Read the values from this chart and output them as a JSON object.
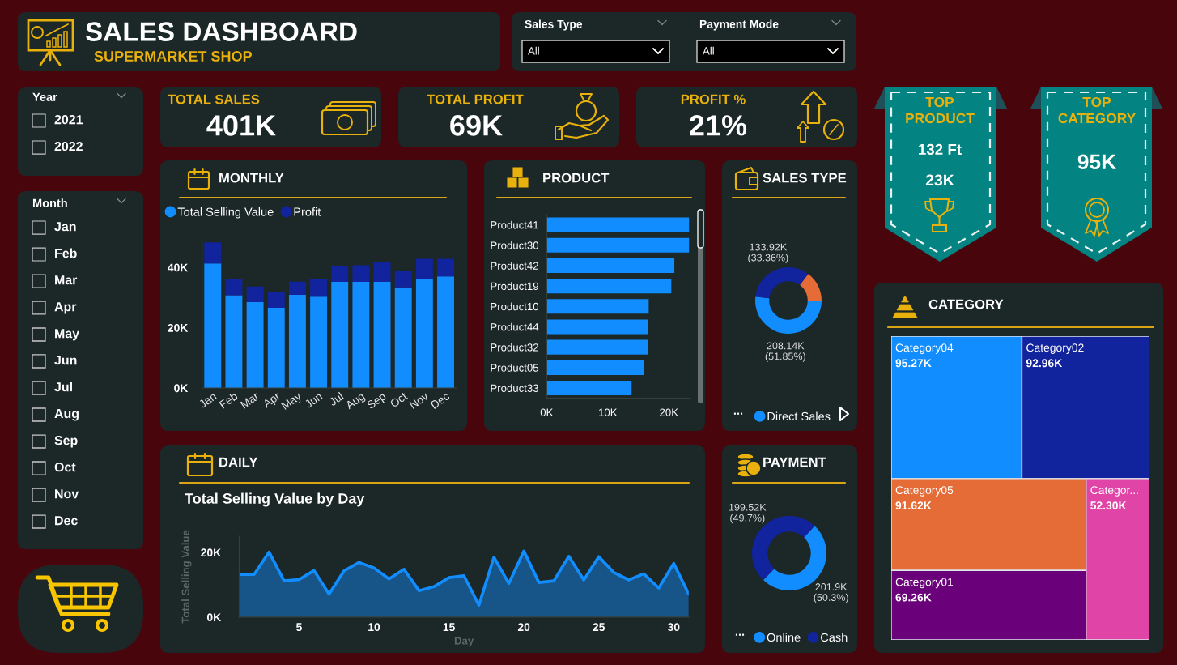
{
  "chart_data": [
    {
      "type": "other",
      "title": "SALES DASHBOARD",
      "subtitle": "SUPERMARKET SHOP"
    },
    {
      "type": "other",
      "title": "Sales Type",
      "annotations": [
        "All"
      ]
    },
    {
      "type": "other",
      "title": "Payment Mode",
      "annotations": [
        "All"
      ]
    },
    {
      "type": "other",
      "title": "Year",
      "annotations": [
        "2021",
        "2022"
      ]
    },
    {
      "type": "other",
      "title": "TOTAL SALES",
      "annotations": [
        "401K"
      ]
    },
    {
      "type": "other",
      "title": "TOTAL PROFIT",
      "annotations": [
        "69K"
      ]
    },
    {
      "type": "other",
      "title": "PROFIT %",
      "annotations": [
        "21%"
      ]
    },
    {
      "type": "other",
      "title": "TOP\nPRODUCT",
      "annotations": [
        "132 Ft",
        "23K"
      ]
    },
    {
      "type": "other",
      "title": "TOP\nCATEGORY",
      "annotations": [
        "95K"
      ]
    },
    {
      "type": "other",
      "title": "Month",
      "annotations": [
        "Jan",
        "Feb",
        "Mar",
        "Apr",
        "May",
        "Jun",
        "Jul",
        "Aug",
        "Sep",
        "Oct",
        "Nov",
        "Dec"
      ]
    },
    {
      "type": "bar",
      "title": "MONTHLY",
      "categories": [
        "Jan",
        "Feb",
        "Mar",
        "Apr",
        "May",
        "Jun",
        "Jul",
        "Aug",
        "Sep",
        "Oct",
        "Nov",
        "Dec"
      ],
      "stacked": true,
      "series": [
        {
          "name": "Total Selling Value",
          "color": "#118dff",
          "values": [
            41.3,
            30.8,
            28.5,
            26.6,
            30.9,
            30.3,
            35.2,
            35.2,
            35.2,
            33.4,
            36.0,
            37.0
          ]
        },
        {
          "name": "Profit",
          "color": "#12239e",
          "values": [
            7.0,
            5.5,
            5.2,
            5.3,
            4.4,
            5.8,
            5.4,
            5.5,
            6.5,
            5.6,
            6.9,
            5.9
          ]
        }
      ],
      "ylim": [
        0,
        50
      ],
      "yticks": [
        {
          "value": 0,
          "label": "0K"
        },
        {
          "value": 20,
          "label": "20K"
        },
        {
          "value": 40,
          "label": "40K"
        }
      ],
      "legend": "top left"
    },
    {
      "type": "bar",
      "title": "PRODUCT",
      "orientation": "horizontal",
      "categories": [
        "Product41",
        "Product30",
        "Product42",
        "Product19",
        "Product10",
        "Product44",
        "Product32",
        "Product05",
        "Product33"
      ],
      "values": [
        23.3,
        23.3,
        20.9,
        20.4,
        16.7,
        16.6,
        16.6,
        15.9,
        13.9
      ],
      "color": "#118dff",
      "xlim": [
        0,
        23.5
      ],
      "xticks": [
        {
          "value": 0,
          "label": "0K"
        },
        {
          "value": 10,
          "label": "10K"
        },
        {
          "value": 20,
          "label": "20K"
        }
      ]
    },
    {
      "type": "donut",
      "title": "SALES TYPE",
      "categories": [
        "Direct Sales",
        null,
        null
      ],
      "values": [
        51.85,
        33.36,
        14.79
      ],
      "colors": [
        "#118dff",
        "#12239e",
        "#e66c37"
      ],
      "value_labels": [
        "208.14K\n(51.85%)",
        "133.92K\n(33.36%)",
        null
      ],
      "legend": "bottom",
      "legend_title": "..."
    },
    {
      "type": "other",
      "title": "CATEGORY",
      "categories": [
        "Category04",
        "Category02",
        "Category05",
        "Category01",
        "Categor..."
      ],
      "values": [
        95.27,
        92.96,
        91.62,
        69.26,
        52.3
      ],
      "colors": [
        "#118dff",
        "#12239e",
        "#e66c37",
        "#6b007b",
        "#e044a7"
      ],
      "value_labels": [
        "95.27K",
        "92.96K",
        "91.62K",
        "69.26K",
        "52.30K"
      ]
    },
    {
      "type": "area",
      "title": "DAILY",
      "subtitle": "Total Selling Value by Day",
      "xlabel": "Day",
      "ylabel": "Total Selling Value",
      "x": [
        1,
        2,
        3,
        4,
        5,
        6,
        7,
        8,
        9,
        10,
        11,
        12,
        13,
        14,
        15,
        16,
        17,
        18,
        19,
        20,
        21,
        22,
        23,
        24,
        25,
        26,
        27,
        28,
        29,
        30,
        31
      ],
      "values": [
        13.2,
        13.2,
        20.1,
        11.2,
        11.6,
        14.4,
        7.1,
        14.3,
        16.9,
        15.2,
        11.8,
        14.8,
        8.2,
        9.4,
        12.2,
        12.8,
        3.7,
        18.5,
        10.4,
        20.4,
        10.7,
        11.2,
        18.8,
        11.5,
        18.7,
        13.8,
        11.5,
        13.4,
        9.0,
        16.6,
        7.1
      ],
      "color": "#118dff",
      "xlim": [
        1,
        31
      ],
      "xticks": [
        5,
        10,
        15,
        20,
        25,
        30
      ],
      "ylim": [
        0,
        25
      ],
      "yticks": [
        {
          "value": 0,
          "label": "0K"
        },
        {
          "value": 20,
          "label": "20K"
        }
      ]
    },
    {
      "type": "donut",
      "title": "PAYMENT",
      "categories": [
        "Online",
        "Cash"
      ],
      "values": [
        50.3,
        49.7
      ],
      "colors": [
        "#118dff",
        "#12239e"
      ],
      "value_labels": [
        "201.9K\n(50.3%)",
        "199.52K\n(49.7%)"
      ],
      "legend": "bottom",
      "legend_title": "..."
    }
  ]
}
